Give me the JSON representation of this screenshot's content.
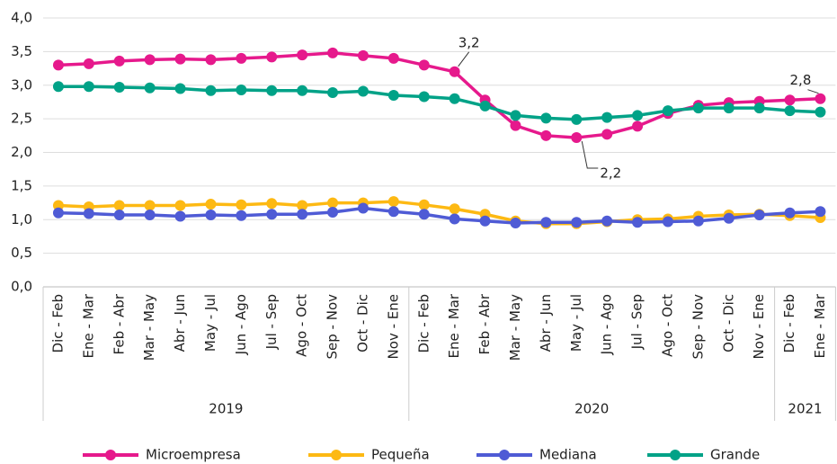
{
  "chart_data": {
    "type": "line",
    "categories": [
      "Dic - Feb",
      "Ene - Mar",
      "Feb - Abr",
      "Mar - May",
      "Abr - Jun",
      "May - Jul",
      "Jun - Ago",
      "Jul - Sep",
      "Ago - Oct",
      "Sep - Nov",
      "Oct - Dic",
      "Nov - Ene",
      "Dic - Feb",
      "Ene - Mar",
      "Feb - Abr",
      "Mar - May",
      "Abr - Jun",
      "May - Jul",
      "Jun - Ago",
      "Jul - Sep",
      "Ago - Oct",
      "Sep - Nov",
      "Oct - Dic",
      "Nov - Ene",
      "Dic - Feb",
      "Ene - Mar"
    ],
    "x_groups": [
      {
        "label": "2019",
        "span": 12
      },
      {
        "label": "2020",
        "span": 12
      },
      {
        "label": "2021",
        "span": 2
      }
    ],
    "series": [
      {
        "name": "Microempresa",
        "color": "#e6198c",
        "values": [
          3.3,
          3.32,
          3.36,
          3.38,
          3.39,
          3.38,
          3.4,
          3.42,
          3.45,
          3.48,
          3.44,
          3.4,
          3.3,
          3.2,
          2.78,
          2.4,
          2.25,
          2.22,
          2.27,
          2.39,
          2.58,
          2.7,
          2.74,
          2.76,
          2.78,
          2.8
        ],
        "value_labels": [
          null,
          null,
          null,
          null,
          null,
          null,
          null,
          null,
          null,
          null,
          null,
          null,
          null,
          "3,2",
          null,
          null,
          null,
          "2,2",
          null,
          null,
          null,
          null,
          null,
          null,
          null,
          "2,8"
        ]
      },
      {
        "name": "Pequeña",
        "color": "#fdb913",
        "values": [
          1.21,
          1.19,
          1.21,
          1.21,
          1.21,
          1.23,
          1.22,
          1.24,
          1.21,
          1.25,
          1.25,
          1.27,
          1.22,
          1.16,
          1.08,
          0.98,
          0.94,
          0.94,
          0.97,
          1.0,
          1.01,
          1.05,
          1.07,
          1.08,
          1.06,
          1.03
        ]
      },
      {
        "name": "Mediana",
        "color": "#4f5bd5",
        "values": [
          1.1,
          1.09,
          1.07,
          1.07,
          1.05,
          1.07,
          1.06,
          1.08,
          1.08,
          1.11,
          1.17,
          1.12,
          1.08,
          1.01,
          0.98,
          0.95,
          0.96,
          0.96,
          0.98,
          0.96,
          0.97,
          0.98,
          1.02,
          1.07,
          1.1,
          1.12
        ]
      },
      {
        "name": "Grande",
        "color": "#00a287",
        "values": [
          2.98,
          2.98,
          2.97,
          2.96,
          2.95,
          2.92,
          2.93,
          2.92,
          2.92,
          2.89,
          2.91,
          2.85,
          2.83,
          2.8,
          2.69,
          2.55,
          2.51,
          2.49,
          2.52,
          2.55,
          2.62,
          2.66,
          2.66,
          2.66,
          2.62,
          2.6
        ]
      }
    ],
    "ylim": [
      0,
      4
    ],
    "yticks": [
      {
        "value": 0,
        "label": "0,0"
      },
      {
        "value": 0.5,
        "label": "0,5"
      },
      {
        "value": 1,
        "label": "1,0"
      },
      {
        "value": 1.5,
        "label": "1,5"
      },
      {
        "value": 2,
        "label": "2,0"
      },
      {
        "value": 2.5,
        "label": "2,5"
      },
      {
        "value": 3,
        "label": "3,0"
      },
      {
        "value": 3.5,
        "label": "3,5"
      },
      {
        "value": 4,
        "label": "4,0"
      }
    ],
    "grid": true
  }
}
